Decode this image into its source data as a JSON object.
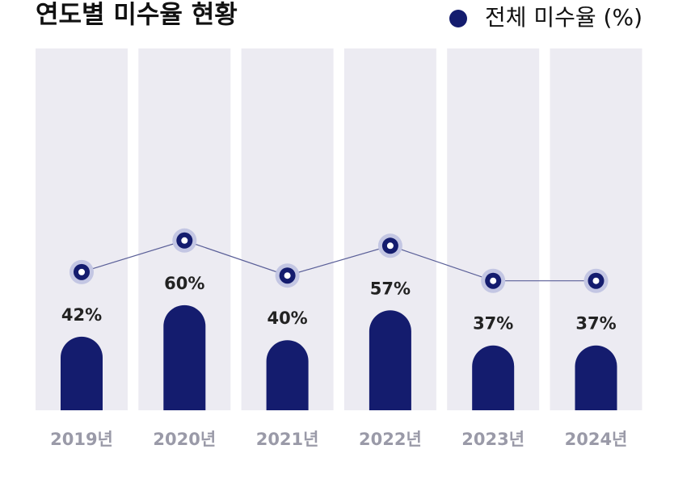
{
  "chart_data": {
    "type": "bar_line",
    "title": "연도별 미수율 현황",
    "categories": [
      "2019년",
      "2020년",
      "2021년",
      "2022년",
      "2023년",
      "2024년"
    ],
    "series": [
      {
        "name": "전체 미수율 (%)",
        "color": "#141c6e",
        "values": [
          42,
          60,
          40,
          57,
          37,
          37
        ],
        "value_labels": [
          "42%",
          "60%",
          "40%",
          "57%",
          "37%",
          "37%"
        ]
      }
    ],
    "ylim": [
      0,
      100
    ]
  }
}
